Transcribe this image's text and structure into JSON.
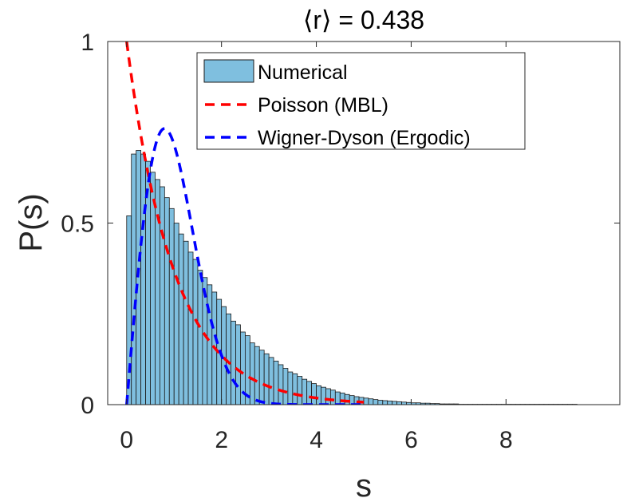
{
  "chart_data": {
    "type": "bar",
    "title": "⟨r⟩ = 0.438",
    "xlabel": "s",
    "ylabel": "P(s)",
    "xlim": [
      -0.4,
      10.4
    ],
    "ylim": [
      0,
      1
    ],
    "xticks": [
      0,
      2,
      4,
      6,
      8
    ],
    "xtick_labels": [
      "0",
      "2",
      "4",
      "6",
      "8"
    ],
    "yticks": [
      0,
      0.5,
      1
    ],
    "ytick_labels": [
      "0",
      "0.5",
      "1"
    ],
    "grid": false,
    "legend_position": "top-right",
    "histogram": {
      "name": "Numerical",
      "bin_width": 0.1,
      "bin_start": 0.0,
      "values": [
        0.52,
        0.69,
        0.7,
        0.69,
        0.67,
        0.64,
        0.62,
        0.6,
        0.57,
        0.54,
        0.5,
        0.47,
        0.45,
        0.42,
        0.4,
        0.37,
        0.35,
        0.33,
        0.31,
        0.29,
        0.27,
        0.25,
        0.23,
        0.22,
        0.2,
        0.19,
        0.17,
        0.16,
        0.15,
        0.14,
        0.13,
        0.12,
        0.11,
        0.1,
        0.09,
        0.085,
        0.078,
        0.07,
        0.064,
        0.058,
        0.052,
        0.048,
        0.044,
        0.04,
        0.035,
        0.032,
        0.028,
        0.025,
        0.022,
        0.02,
        0.018,
        0.016,
        0.014,
        0.012,
        0.011,
        0.01,
        0.009,
        0.008,
        0.007,
        0.006,
        0.005,
        0.005,
        0.004,
        0.004,
        0.003,
        0.003,
        0.002,
        0.002,
        0.002,
        0.002,
        0.001,
        0.001,
        0.001,
        0.001,
        0.001,
        0.001,
        0.001,
        0.001,
        0.001,
        0.001,
        0.001,
        0.001,
        0.001,
        0.001,
        0.001,
        0.001,
        0.001,
        0.001,
        0.001,
        0.001,
        0.001,
        0.001,
        0.001,
        0.001,
        0.001
      ],
      "color": "#7fbfdf",
      "edge_color": "#1a1a1a"
    },
    "series": [
      {
        "name": "Poisson (MBL)",
        "function": "exp(-s)",
        "x_range": [
          0,
          5
        ],
        "color": "#ff0000",
        "style": "dashed"
      },
      {
        "name": "Wigner-Dyson (Ergodic)",
        "function": "(pi/2) s exp(-pi s^2 / 4)",
        "x_range": [
          0,
          5
        ],
        "color": "#0000ff",
        "style": "dashed"
      }
    ]
  }
}
